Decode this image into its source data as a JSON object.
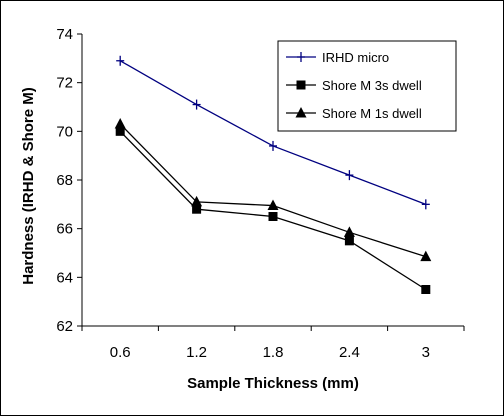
{
  "chart_data": {
    "type": "line",
    "title": "",
    "xlabel": "Sample Thickness (mm)",
    "ylabel": "Hardness (IRHD & Shore M)",
    "categories": [
      "0.6",
      "1.2",
      "1.8",
      "2.4",
      "3"
    ],
    "ylim": [
      62,
      74
    ],
    "yticks": [
      62,
      64,
      66,
      68,
      70,
      72,
      74
    ],
    "grid": false,
    "legend_position": "top-right",
    "series": [
      {
        "name": "IRHD micro",
        "marker": "plus",
        "color": "#000080",
        "values": [
          72.9,
          71.1,
          69.4,
          68.2,
          67.0
        ]
      },
      {
        "name": "Shore M 3s dwell",
        "marker": "square",
        "color": "#000000",
        "values": [
          70.0,
          66.8,
          66.5,
          65.5,
          63.5
        ]
      },
      {
        "name": "Shore M 1s dwell",
        "marker": "triangle",
        "color": "#000000",
        "values": [
          70.3,
          67.1,
          66.95,
          65.85,
          64.85
        ]
      }
    ]
  }
}
